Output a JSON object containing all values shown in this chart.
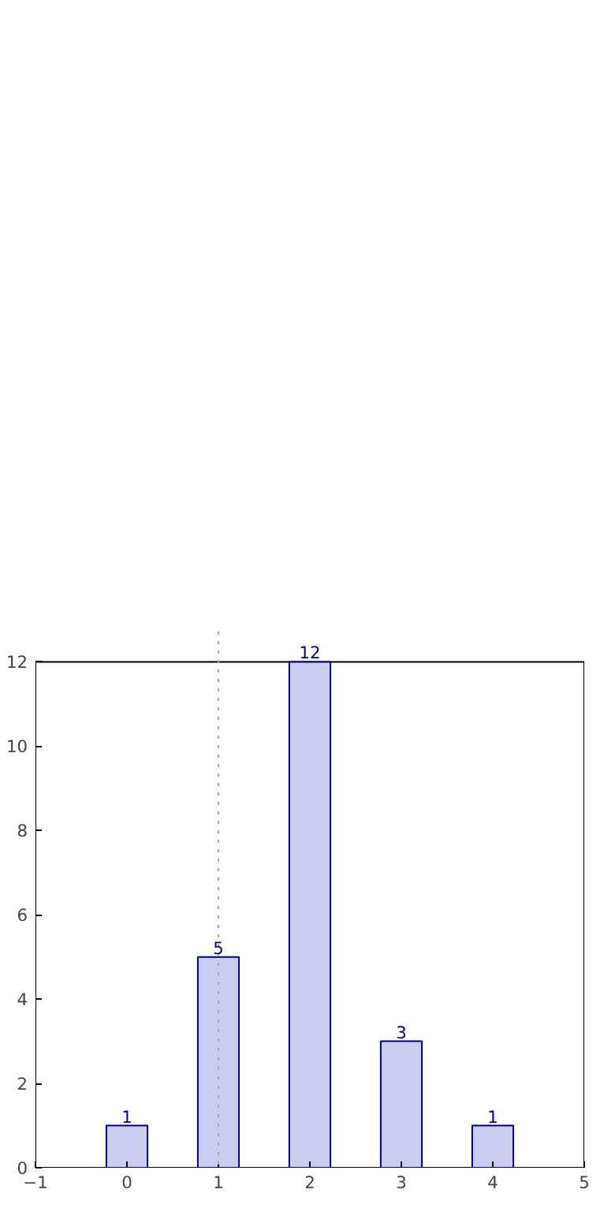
{
  "chart_data": {
    "type": "bar",
    "x": [
      0,
      1,
      2,
      3,
      4
    ],
    "values": [
      1,
      5,
      12,
      3,
      1
    ],
    "color": "#ccccf0",
    "data_labels": true,
    "xlim": [
      -1,
      5
    ],
    "xticks": [
      -1,
      0,
      1,
      2,
      3,
      4,
      5
    ],
    "ylim": [
      0,
      12
    ],
    "yticks": [
      0,
      2,
      4,
      6,
      8,
      10,
      12
    ],
    "grid": false,
    "ref_lines": [
      {
        "axis": "x",
        "value": 1,
        "color": "#aaaaaa",
        "line_style": "dotted"
      }
    ]
  }
}
